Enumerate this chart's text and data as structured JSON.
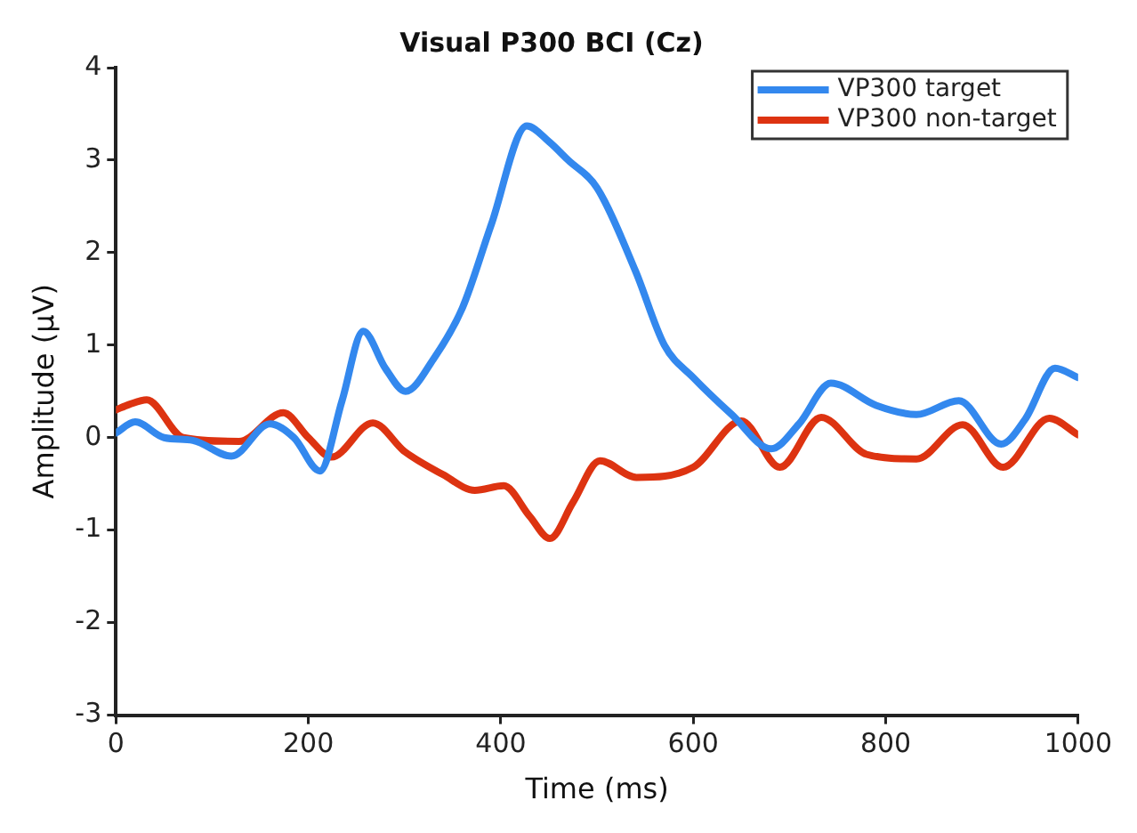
{
  "chart_data": {
    "type": "line",
    "title": "Visual P300 BCI (Cz)",
    "xlabel": "Time (ms)",
    "ylabel": "Amplitude (μV)",
    "xlim": [
      0,
      1000
    ],
    "xticks": [
      0,
      200,
      400,
      600,
      800,
      1000
    ],
    "ylim": [
      -3,
      4
    ],
    "yticks": [
      -3,
      -2,
      -1,
      0,
      1,
      2,
      3,
      4
    ],
    "grid": false,
    "legend": "top right",
    "marker": "none",
    "line_style": "solid",
    "series": [
      {
        "name": "VP300 target",
        "color": "#3388ee",
        "x": [
          0,
          20,
          50,
          80,
          120,
          160,
          185,
          212,
          235,
          257,
          280,
          301,
          330,
          360,
          390,
          427,
          450,
          470,
          500,
          540,
          570,
          600,
          640,
          681,
          710,
          743,
          790,
          832,
          876,
          920,
          945,
          976,
          1000
        ],
        "values": [
          0.05,
          0.17,
          0.0,
          -0.03,
          -0.2,
          0.15,
          0.0,
          -0.36,
          0.4,
          1.15,
          0.75,
          0.5,
          0.85,
          1.4,
          2.3,
          3.37,
          3.2,
          3.0,
          2.7,
          1.8,
          1.0,
          0.65,
          0.25,
          -0.12,
          0.15,
          0.59,
          0.35,
          0.25,
          0.4,
          -0.07,
          0.2,
          0.75,
          0.65
        ]
      },
      {
        "name": "VP300 non-target",
        "color": "#dd3311",
        "x": [
          0,
          14,
          32,
          70,
          128,
          174,
          200,
          224,
          267,
          300,
          340,
          373,
          403,
          430,
          451,
          475,
          503,
          541,
          600,
          650,
          690,
          733,
          780,
          832,
          880,
          922,
          970,
          1000
        ],
        "values": [
          0.3,
          0.36,
          0.41,
          0.0,
          -0.04,
          0.27,
          0.0,
          -0.21,
          0.16,
          -0.15,
          -0.4,
          -0.57,
          -0.52,
          -0.85,
          -1.09,
          -0.7,
          -0.25,
          -0.43,
          -0.32,
          0.18,
          -0.32,
          0.22,
          -0.18,
          -0.23,
          0.14,
          -0.32,
          0.21,
          0.03
        ]
      }
    ]
  }
}
